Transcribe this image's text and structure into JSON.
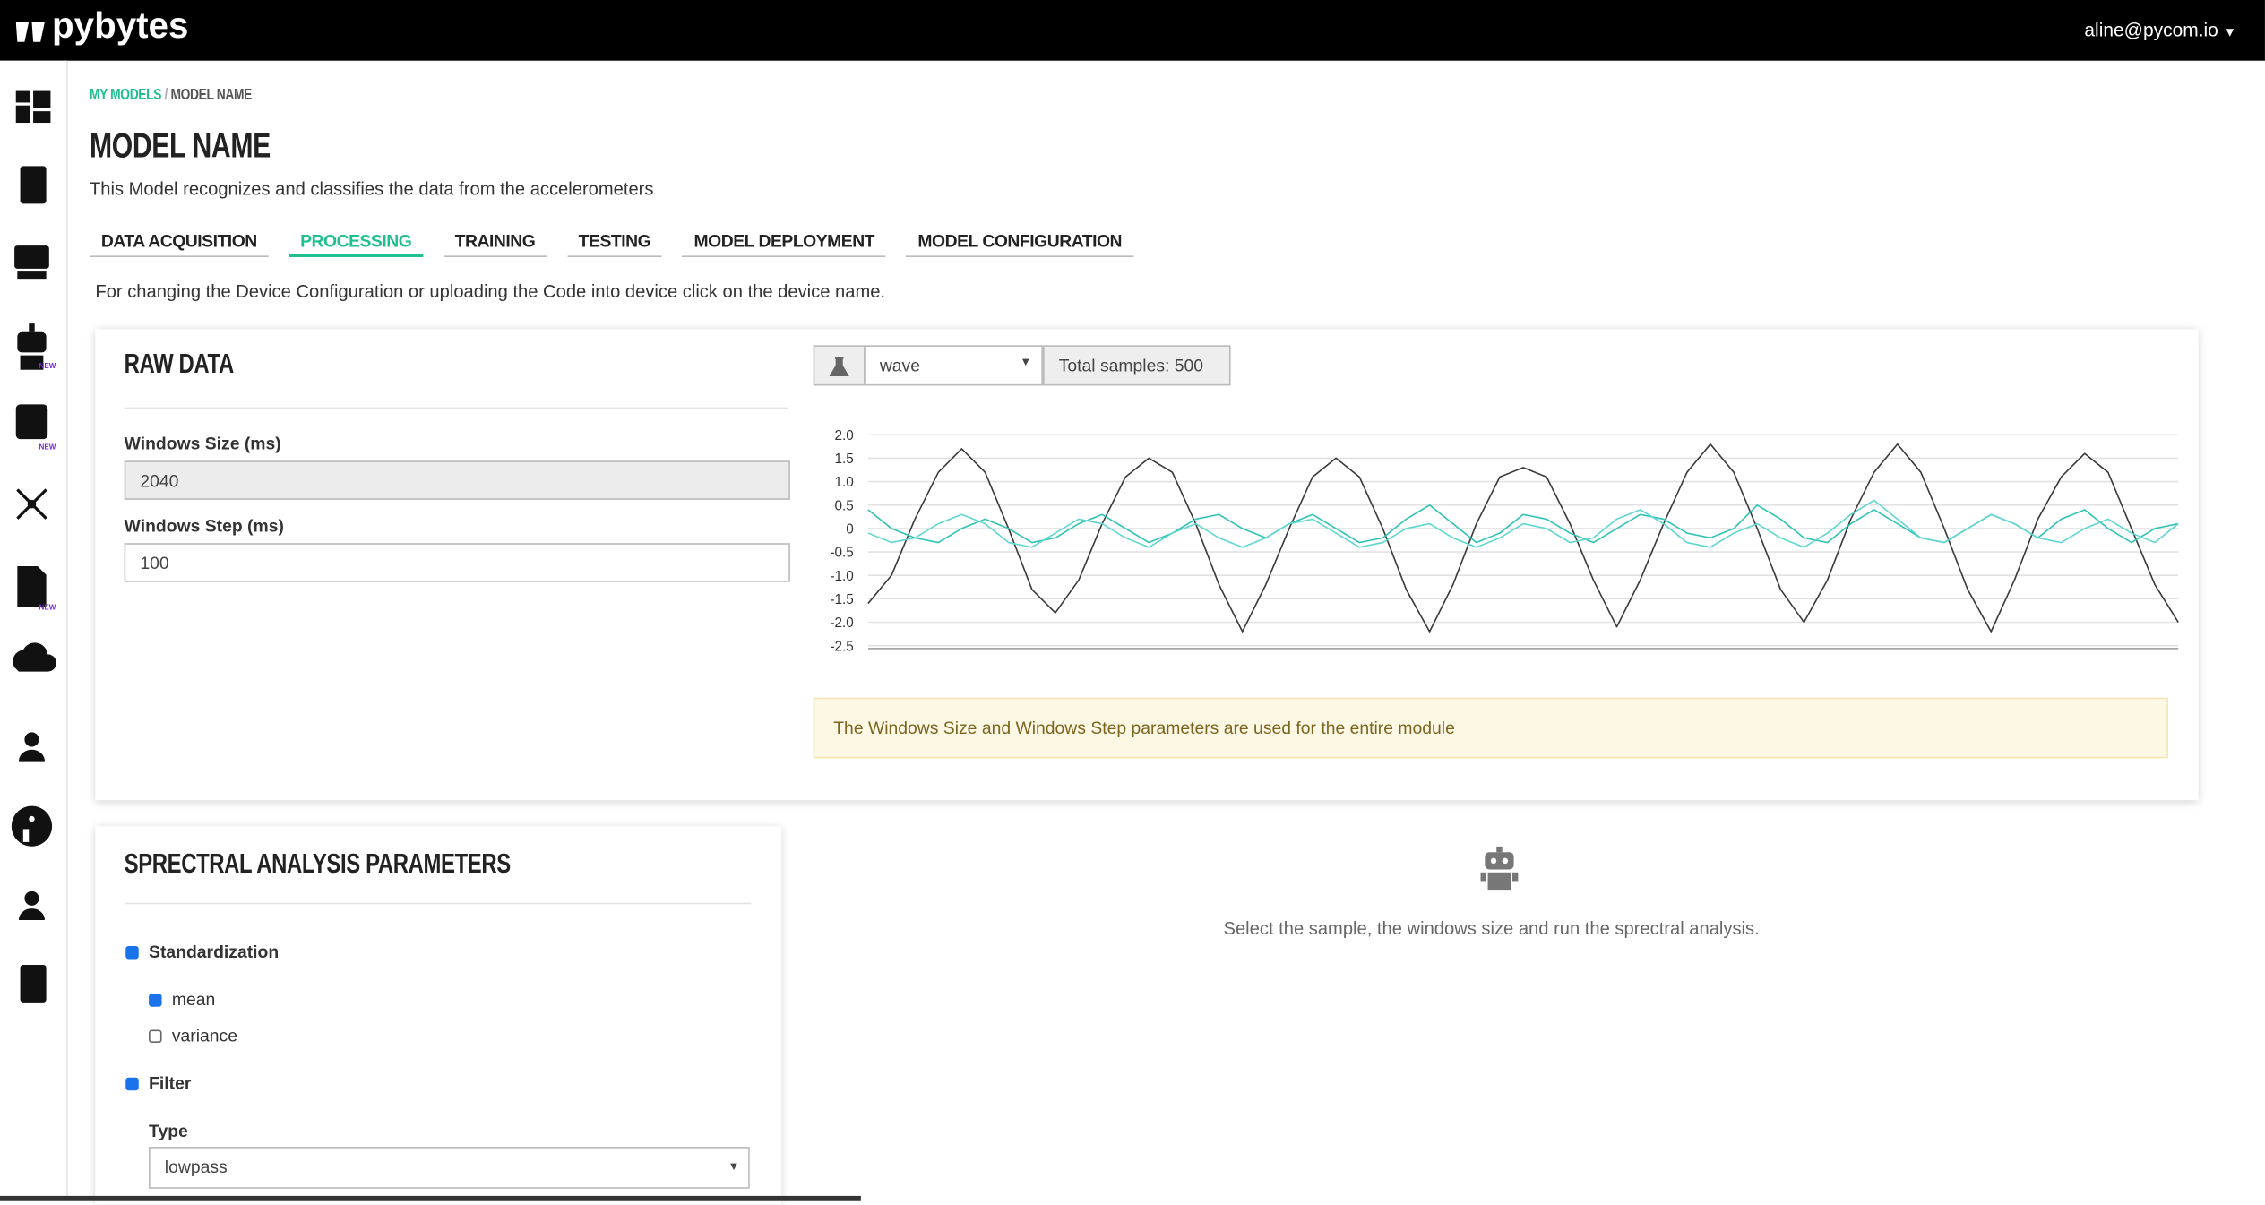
{
  "header": {
    "logo": "pybytes",
    "user": "aline@pycom.io"
  },
  "sidebar": {
    "badges": [
      "NEW",
      "NEW",
      "NEW"
    ]
  },
  "breadcrumb": {
    "items": [
      "MY MODELS",
      "MODEL NAME"
    ],
    "separator": "/"
  },
  "title": "MODEL NAME",
  "description": "This Model recognizes and classifies the data from the accelerometers",
  "tabs": {
    "items": [
      "DATA ACQUISITION",
      "PROCESSING",
      "TRAINING",
      "TESTING",
      "MODEL DEPLOYMENT",
      "MODEL CONFIGURATION"
    ],
    "active": 1
  },
  "note": "For changing the Device Configuration or uploading the Code into device click on the device name.",
  "raw_data": {
    "title": "RAW DATA",
    "window_size_label": "Windows Size (ms)",
    "window_size": "2040",
    "window_step_label": "Windows Step (ms)",
    "window_step": "100",
    "sample": "wave",
    "total_samples": "Total samples: 500",
    "info": "The Windows Size and Windows Step parameters are used for the entire module"
  },
  "chart_data": {
    "type": "line",
    "ylim": [
      -2.5,
      2.0
    ],
    "yticks": [
      {
        "value": 2,
        "label": "2.0"
      },
      1.5,
      {
        "value": 1,
        "label": "1.0"
      },
      0.5,
      0,
      -0.5,
      {
        "value": -1,
        "label": "-1.0"
      },
      -1.5,
      {
        "value": -2,
        "label": "-2.0"
      },
      -2.5
    ],
    "grid": true,
    "series": [
      {
        "color": "#3a3a3a",
        "values": [
          -1.6,
          -1.0,
          0.2,
          1.2,
          1.7,
          1.2,
          0.0,
          -1.3,
          -1.8,
          -1.1,
          0.1,
          1.1,
          1.5,
          1.2,
          0.1,
          -1.2,
          -2.2,
          -1.2,
          0.0,
          1.1,
          1.5,
          1.1,
          0.0,
          -1.3,
          -2.2,
          -1.2,
          0.1,
          1.1,
          1.3,
          1.1,
          0.1,
          -1.1,
          -2.1,
          -1.1,
          0.1,
          1.2,
          1.8,
          1.2,
          0.0,
          -1.3,
          -2.0,
          -1.1,
          0.2,
          1.2,
          1.8,
          1.2,
          0.0,
          -1.3,
          -2.2,
          -1.1,
          0.2,
          1.1,
          1.6,
          1.2,
          0.0,
          -1.2,
          -2.0
        ]
      },
      {
        "color": "#2fc3b4",
        "values": [
          0.4,
          0.0,
          -0.2,
          -0.3,
          0.0,
          0.2,
          0.0,
          -0.3,
          -0.2,
          0.1,
          0.3,
          0.0,
          -0.3,
          -0.1,
          0.2,
          0.3,
          0.0,
          -0.2,
          0.1,
          0.3,
          0.0,
          -0.3,
          -0.2,
          0.2,
          0.5,
          0.1,
          -0.3,
          -0.1,
          0.3,
          0.2,
          -0.1,
          -0.3,
          0.0,
          0.3,
          0.2,
          -0.1,
          -0.2,
          0.0,
          0.5,
          0.2,
          -0.2,
          -0.3,
          0.1,
          0.4,
          0.1,
          -0.2,
          -0.3,
          0.0,
          0.3,
          0.1,
          -0.2,
          0.2,
          0.4,
          0.0,
          -0.3,
          0.0,
          0.1
        ]
      },
      {
        "color": "#5fd6d0",
        "values": [
          -0.1,
          -0.3,
          -0.2,
          0.1,
          0.3,
          0.1,
          -0.3,
          -0.4,
          -0.1,
          0.2,
          0.1,
          -0.2,
          -0.4,
          -0.1,
          0.1,
          -0.2,
          -0.4,
          -0.2,
          0.1,
          0.2,
          -0.1,
          -0.4,
          -0.3,
          0.0,
          0.1,
          -0.2,
          -0.4,
          -0.2,
          0.1,
          0.0,
          -0.3,
          -0.2,
          0.2,
          0.4,
          0.1,
          -0.3,
          -0.4,
          -0.1,
          0.1,
          -0.2,
          -0.4,
          -0.1,
          0.3,
          0.6,
          0.2,
          -0.2,
          -0.3,
          0.0,
          0.3,
          0.1,
          -0.2,
          -0.3,
          0.0,
          0.2,
          -0.1,
          -0.3,
          0.1
        ]
      }
    ]
  },
  "spectral": {
    "title": "SPRECTRAL ANALYSIS PARAMETERS",
    "standardization": "Standardization",
    "standardization_checked": true,
    "mean": "mean",
    "mean_checked": true,
    "variance": "variance",
    "variance_checked": false,
    "filter": "Filter",
    "filter_checked": true,
    "type_label": "Type",
    "type": "lowpass"
  },
  "empty_state": "Select the sample, the windows size and run the sprectral analysis."
}
